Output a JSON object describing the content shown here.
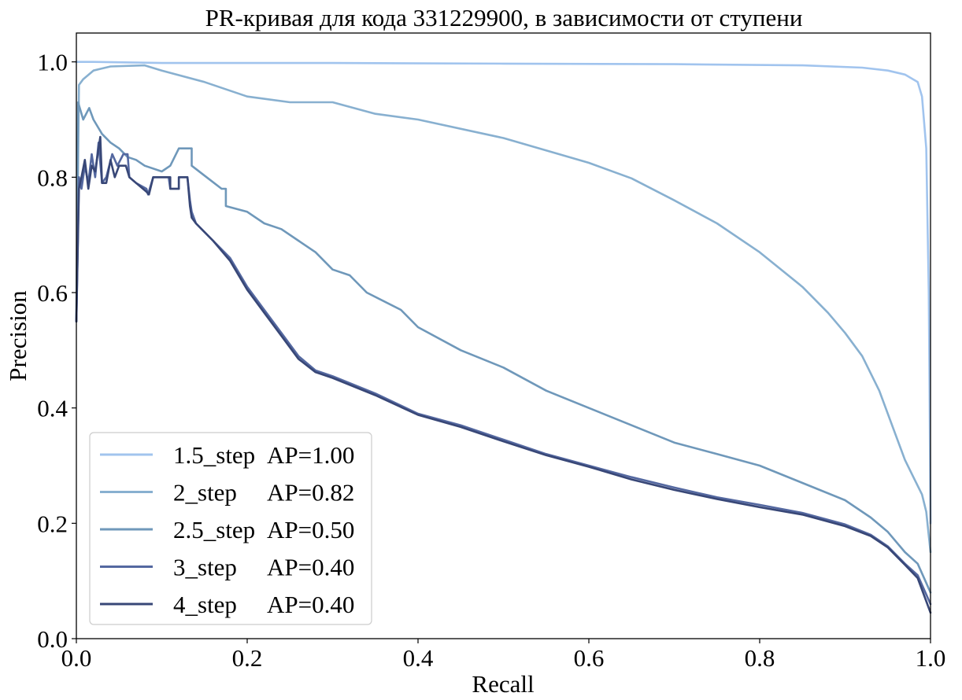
{
  "chart_data": {
    "type": "line",
    "title": "PR-кривая для кода 331229900, в зависимости от ступени",
    "xlabel": "Recall",
    "ylabel": "Precision",
    "xlim": [
      0.0,
      1.0
    ],
    "ylim": [
      0.0,
      1.05
    ],
    "xticks": [
      "0.0",
      "0.2",
      "0.4",
      "0.6",
      "0.8",
      "1.0"
    ],
    "yticks": [
      "0.0",
      "0.2",
      "0.4",
      "0.6",
      "0.8",
      "1.0"
    ],
    "grid": false,
    "legend_position": "lower-left",
    "series": [
      {
        "name": "1.5_step",
        "ap": "AP=1.00",
        "color": "#a1c4ee",
        "points": [
          [
            0.0,
            1.0
          ],
          [
            0.02,
            1.0
          ],
          [
            0.1,
            0.998
          ],
          [
            0.3,
            0.998
          ],
          [
            0.5,
            0.997
          ],
          [
            0.7,
            0.996
          ],
          [
            0.85,
            0.994
          ],
          [
            0.92,
            0.99
          ],
          [
            0.95,
            0.985
          ],
          [
            0.97,
            0.978
          ],
          [
            0.985,
            0.965
          ],
          [
            0.99,
            0.94
          ],
          [
            0.995,
            0.85
          ],
          [
            0.998,
            0.6
          ],
          [
            1.0,
            0.2
          ]
        ]
      },
      {
        "name": "2_step",
        "ap": "AP=0.82",
        "color": "#88b0d0",
        "points": [
          [
            0.0,
            0.55
          ],
          [
            0.003,
            0.96
          ],
          [
            0.008,
            0.97
          ],
          [
            0.02,
            0.985
          ],
          [
            0.04,
            0.992
          ],
          [
            0.08,
            0.994
          ],
          [
            0.1,
            0.985
          ],
          [
            0.15,
            0.965
          ],
          [
            0.2,
            0.94
          ],
          [
            0.25,
            0.93
          ],
          [
            0.3,
            0.93
          ],
          [
            0.35,
            0.91
          ],
          [
            0.4,
            0.9
          ],
          [
            0.5,
            0.868
          ],
          [
            0.6,
            0.825
          ],
          [
            0.65,
            0.798
          ],
          [
            0.7,
            0.76
          ],
          [
            0.75,
            0.72
          ],
          [
            0.8,
            0.67
          ],
          [
            0.85,
            0.61
          ],
          [
            0.88,
            0.565
          ],
          [
            0.9,
            0.53
          ],
          [
            0.92,
            0.49
          ],
          [
            0.94,
            0.43
          ],
          [
            0.96,
            0.35
          ],
          [
            0.97,
            0.31
          ],
          [
            0.98,
            0.28
          ],
          [
            0.99,
            0.25
          ],
          [
            0.995,
            0.22
          ],
          [
            1.0,
            0.15
          ]
        ]
      },
      {
        "name": "2.5_step",
        "ap": "AP=0.50",
        "color": "#6f98ba",
        "points": [
          [
            0.0,
            0.55
          ],
          [
            0.002,
            0.93
          ],
          [
            0.008,
            0.9
          ],
          [
            0.015,
            0.92
          ],
          [
            0.02,
            0.9
          ],
          [
            0.03,
            0.875
          ],
          [
            0.04,
            0.86
          ],
          [
            0.05,
            0.85
          ],
          [
            0.06,
            0.835
          ],
          [
            0.07,
            0.83
          ],
          [
            0.08,
            0.82
          ],
          [
            0.1,
            0.81
          ],
          [
            0.11,
            0.82
          ],
          [
            0.12,
            0.85
          ],
          [
            0.135,
            0.85
          ],
          [
            0.135,
            0.82
          ],
          [
            0.17,
            0.78
          ],
          [
            0.175,
            0.78
          ],
          [
            0.175,
            0.75
          ],
          [
            0.2,
            0.74
          ],
          [
            0.22,
            0.72
          ],
          [
            0.24,
            0.71
          ],
          [
            0.26,
            0.69
          ],
          [
            0.28,
            0.67
          ],
          [
            0.3,
            0.64
          ],
          [
            0.32,
            0.63
          ],
          [
            0.34,
            0.6
          ],
          [
            0.38,
            0.57
          ],
          [
            0.4,
            0.54
          ],
          [
            0.45,
            0.5
          ],
          [
            0.5,
            0.47
          ],
          [
            0.55,
            0.43
          ],
          [
            0.6,
            0.4
          ],
          [
            0.65,
            0.37
          ],
          [
            0.7,
            0.34
          ],
          [
            0.75,
            0.32
          ],
          [
            0.8,
            0.3
          ],
          [
            0.85,
            0.27
          ],
          [
            0.9,
            0.24
          ],
          [
            0.93,
            0.21
          ],
          [
            0.95,
            0.185
          ],
          [
            0.97,
            0.15
          ],
          [
            0.985,
            0.13
          ],
          [
            1.0,
            0.08
          ]
        ]
      },
      {
        "name": "3_step",
        "ap": "AP=0.40",
        "color": "#5468a0",
        "points": [
          [
            0.0,
            0.55
          ],
          [
            0.003,
            0.8
          ],
          [
            0.006,
            0.78
          ],
          [
            0.01,
            0.82
          ],
          [
            0.014,
            0.79
          ],
          [
            0.018,
            0.84
          ],
          [
            0.022,
            0.8
          ],
          [
            0.026,
            0.86
          ],
          [
            0.03,
            0.79
          ],
          [
            0.035,
            0.8
          ],
          [
            0.042,
            0.84
          ],
          [
            0.048,
            0.82
          ],
          [
            0.055,
            0.84
          ],
          [
            0.06,
            0.84
          ],
          [
            0.062,
            0.8
          ],
          [
            0.07,
            0.79
          ],
          [
            0.082,
            0.78
          ],
          [
            0.084,
            0.77
          ],
          [
            0.09,
            0.8
          ],
          [
            0.108,
            0.8
          ],
          [
            0.11,
            0.78
          ],
          [
            0.12,
            0.78
          ],
          [
            0.12,
            0.8
          ],
          [
            0.13,
            0.8
          ],
          [
            0.133,
            0.76
          ],
          [
            0.135,
            0.74
          ],
          [
            0.14,
            0.72
          ],
          [
            0.16,
            0.69
          ],
          [
            0.18,
            0.66
          ],
          [
            0.2,
            0.61
          ],
          [
            0.22,
            0.57
          ],
          [
            0.24,
            0.53
          ],
          [
            0.26,
            0.49
          ],
          [
            0.28,
            0.465
          ],
          [
            0.3,
            0.455
          ],
          [
            0.35,
            0.425
          ],
          [
            0.4,
            0.39
          ],
          [
            0.45,
            0.37
          ],
          [
            0.5,
            0.345
          ],
          [
            0.55,
            0.32
          ],
          [
            0.6,
            0.3
          ],
          [
            0.65,
            0.28
          ],
          [
            0.7,
            0.262
          ],
          [
            0.75,
            0.245
          ],
          [
            0.8,
            0.232
          ],
          [
            0.85,
            0.218
          ],
          [
            0.9,
            0.198
          ],
          [
            0.93,
            0.18
          ],
          [
            0.95,
            0.16
          ],
          [
            0.97,
            0.13
          ],
          [
            0.985,
            0.11
          ],
          [
            1.0,
            0.06
          ]
        ]
      },
      {
        "name": "4_step",
        "ap": "AP=0.40",
        "color": "#384777",
        "points": [
          [
            0.0,
            0.55
          ],
          [
            0.003,
            0.78
          ],
          [
            0.006,
            0.8
          ],
          [
            0.01,
            0.83
          ],
          [
            0.014,
            0.78
          ],
          [
            0.018,
            0.82
          ],
          [
            0.022,
            0.81
          ],
          [
            0.028,
            0.87
          ],
          [
            0.03,
            0.79
          ],
          [
            0.035,
            0.79
          ],
          [
            0.04,
            0.83
          ],
          [
            0.045,
            0.8
          ],
          [
            0.05,
            0.82
          ],
          [
            0.058,
            0.82
          ],
          [
            0.062,
            0.8
          ],
          [
            0.07,
            0.79
          ],
          [
            0.082,
            0.775
          ],
          [
            0.085,
            0.77
          ],
          [
            0.09,
            0.8
          ],
          [
            0.11,
            0.8
          ],
          [
            0.11,
            0.78
          ],
          [
            0.12,
            0.78
          ],
          [
            0.12,
            0.8
          ],
          [
            0.13,
            0.8
          ],
          [
            0.133,
            0.75
          ],
          [
            0.135,
            0.73
          ],
          [
            0.14,
            0.72
          ],
          [
            0.16,
            0.69
          ],
          [
            0.18,
            0.655
          ],
          [
            0.2,
            0.605
          ],
          [
            0.22,
            0.565
          ],
          [
            0.24,
            0.525
          ],
          [
            0.26,
            0.485
          ],
          [
            0.28,
            0.462
          ],
          [
            0.3,
            0.452
          ],
          [
            0.35,
            0.422
          ],
          [
            0.4,
            0.388
          ],
          [
            0.45,
            0.367
          ],
          [
            0.5,
            0.342
          ],
          [
            0.55,
            0.318
          ],
          [
            0.6,
            0.298
          ],
          [
            0.65,
            0.276
          ],
          [
            0.7,
            0.258
          ],
          [
            0.75,
            0.242
          ],
          [
            0.8,
            0.228
          ],
          [
            0.85,
            0.215
          ],
          [
            0.9,
            0.195
          ],
          [
            0.93,
            0.178
          ],
          [
            0.95,
            0.158
          ],
          [
            0.97,
            0.128
          ],
          [
            0.985,
            0.105
          ],
          [
            1.0,
            0.045
          ]
        ]
      }
    ]
  }
}
